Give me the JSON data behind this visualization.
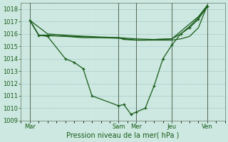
{
  "bg_color": "#cce8e0",
  "grid_color_major": "#aacccc",
  "grid_color_minor": "#ddeee8",
  "line_color": "#1a5c1a",
  "title": "Pression niveau de la mer( hPa )",
  "ylim": [
    1009,
    1018.5
  ],
  "yticks": [
    1009,
    1010,
    1011,
    1012,
    1013,
    1014,
    1015,
    1016,
    1017,
    1018
  ],
  "x_day_labels": [
    "Mar",
    "Sam",
    "Mer",
    "Jeu",
    "Ven"
  ],
  "x_day_positions": [
    0.5,
    5.5,
    6.5,
    8.5,
    10.5
  ],
  "xlim": [
    0,
    11.5
  ],
  "vline_positions": [
    0.5,
    5.5,
    6.5,
    8.5,
    10.5
  ],
  "lines": [
    {
      "x": [
        0.5,
        1.0,
        1.5,
        2.5,
        3.0,
        3.5,
        4.0,
        5.5,
        5.8,
        6.2,
        6.5,
        7.0,
        7.5,
        8.0,
        8.5,
        9.0,
        9.5,
        10.0,
        10.5
      ],
      "y": [
        1017.1,
        1015.9,
        1015.8,
        1014.0,
        1013.7,
        1013.2,
        1011.0,
        1010.2,
        1010.3,
        1009.5,
        1009.7,
        1010.0,
        1011.8,
        1014.0,
        1015.1,
        1016.0,
        1016.5,
        1017.2,
        1018.2
      ],
      "has_markers": true
    },
    {
      "x": [
        0.5,
        1.0,
        1.5,
        2.5,
        3.5,
        4.5,
        5.5,
        5.8,
        6.5,
        7.0,
        7.5,
        8.5,
        9.0,
        9.5,
        10.0,
        10.5
      ],
      "y": [
        1017.1,
        1015.9,
        1015.9,
        1015.8,
        1015.7,
        1015.7,
        1015.7,
        1015.55,
        1015.5,
        1015.5,
        1015.55,
        1015.6,
        1016.0,
        1016.6,
        1017.3,
        1018.3
      ],
      "has_markers": false
    },
    {
      "x": [
        0.5,
        1.0,
        1.5,
        3.0,
        4.5,
        5.5,
        6.5,
        7.0,
        7.5,
        8.5,
        9.0,
        9.5,
        10.0,
        10.5
      ],
      "y": [
        1017.1,
        1015.9,
        1015.85,
        1015.8,
        1015.7,
        1015.65,
        1015.5,
        1015.5,
        1015.5,
        1015.5,
        1015.6,
        1015.8,
        1016.5,
        1018.3
      ],
      "has_markers": false
    },
    {
      "x": [
        0.5,
        1.5,
        3.0,
        4.5,
        5.5,
        6.5,
        7.5,
        8.5,
        9.0,
        9.5,
        10.0,
        10.5
      ],
      "y": [
        1017.1,
        1016.0,
        1015.85,
        1015.75,
        1015.7,
        1015.6,
        1015.55,
        1015.6,
        1016.2,
        1016.8,
        1017.4,
        1018.3
      ],
      "has_markers": false
    }
  ]
}
